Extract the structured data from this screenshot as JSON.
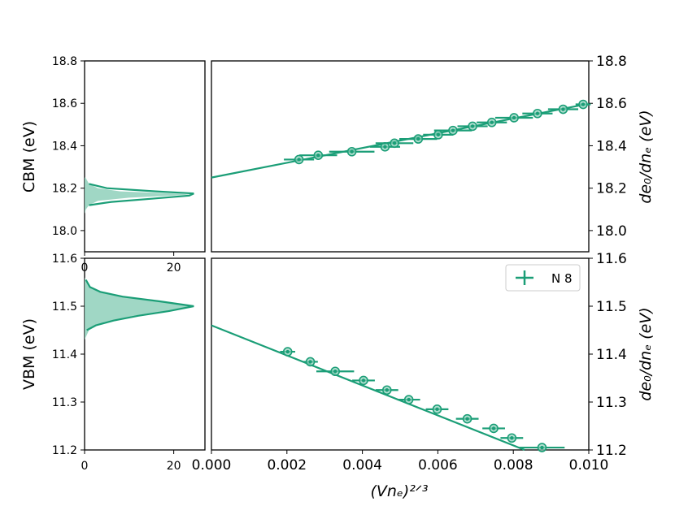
{
  "colors": {
    "series": "#1b9e77",
    "fill": "#8fd0bb",
    "axes": "#000000"
  },
  "legend": {
    "label": "N 8",
    "placement": "upper-right"
  },
  "xlabel": "(Vnₑ)²ᐟ³",
  "top_left_ylabel": "CBM (eV)",
  "bottom_left_ylabel": "VBM (eV)",
  "right_ylabel": "de₀/dnₑ (eV)",
  "chart_data": [
    {
      "id": "cbm-hist",
      "type": "area",
      "orientation": "horizontal",
      "ylabel": "CBM (eV)",
      "ylim": [
        17.9,
        18.8
      ],
      "xlim": [
        0,
        27
      ],
      "xticks": [
        "0",
        "20"
      ],
      "yticks": [
        "18.0",
        "18.2",
        "18.4",
        "18.6",
        "18.8"
      ],
      "profile": [
        [
          18.08,
          0.0
        ],
        [
          18.1,
          0.3
        ],
        [
          18.12,
          1.0
        ],
        [
          18.14,
          3.0
        ],
        [
          18.155,
          10.0
        ],
        [
          18.165,
          20.0
        ],
        [
          18.17,
          24.0
        ],
        [
          18.175,
          20.0
        ],
        [
          18.185,
          8.0
        ],
        [
          18.2,
          3.0
        ],
        [
          18.22,
          1.0
        ],
        [
          18.25,
          0.2
        ]
      ],
      "curve": [
        [
          18.12,
          1.0
        ],
        [
          18.135,
          6.0
        ],
        [
          18.15,
          15.0
        ],
        [
          18.165,
          23.5
        ],
        [
          18.175,
          24.5
        ],
        [
          18.185,
          16.0
        ],
        [
          18.2,
          5.0
        ],
        [
          18.22,
          1.0
        ]
      ]
    },
    {
      "id": "cbm-fit",
      "type": "scatter",
      "ylabel": "de₀/dnₑ (eV)",
      "xlim": [
        0.0,
        0.01
      ],
      "ylim": [
        17.9,
        18.8
      ],
      "yticks": [
        "18.0",
        "18.2",
        "18.4",
        "18.6",
        "18.8"
      ],
      "fit": {
        "x": [
          0.0,
          0.0099
        ],
        "y": [
          18.25,
          18.595
        ]
      },
      "points": [
        {
          "x": 0.00232,
          "y": 18.335,
          "xerr": 0.0004
        },
        {
          "x": 0.00283,
          "y": 18.355,
          "xerr": 0.0005
        },
        {
          "x": 0.00372,
          "y": 18.372,
          "xerr": 0.0006
        },
        {
          "x": 0.0046,
          "y": 18.395,
          "xerr": 0.0004
        },
        {
          "x": 0.00485,
          "y": 18.412,
          "xerr": 0.0005
        },
        {
          "x": 0.00548,
          "y": 18.432,
          "xerr": 0.0005
        },
        {
          "x": 0.00601,
          "y": 18.452,
          "xerr": 0.0004
        },
        {
          "x": 0.0064,
          "y": 18.472,
          "xerr": 0.0005
        },
        {
          "x": 0.00692,
          "y": 18.492,
          "xerr": 0.0004
        },
        {
          "x": 0.00743,
          "y": 18.51,
          "xerr": 0.0004
        },
        {
          "x": 0.00802,
          "y": 18.532,
          "xerr": 0.0005
        },
        {
          "x": 0.00864,
          "y": 18.552,
          "xerr": 0.0004
        },
        {
          "x": 0.00932,
          "y": 18.572,
          "xerr": 0.0004
        },
        {
          "x": 0.00985,
          "y": 18.595,
          "xerr": 0.0002
        }
      ]
    },
    {
      "id": "vbm-hist",
      "type": "area",
      "orientation": "horizontal",
      "ylabel": "VBM (eV)",
      "ylim": [
        11.2,
        11.6
      ],
      "xlim": [
        0,
        27
      ],
      "xticks": [
        "0",
        "20"
      ],
      "yticks": [
        "11.2",
        "11.3",
        "11.4",
        "11.5",
        "11.6"
      ],
      "profile": [
        [
          11.43,
          0.0
        ],
        [
          11.45,
          1.0
        ],
        [
          11.46,
          3.0
        ],
        [
          11.47,
          6.0
        ],
        [
          11.48,
          11.0
        ],
        [
          11.49,
          18.0
        ],
        [
          11.5,
          24.0
        ],
        [
          11.51,
          16.0
        ],
        [
          11.52,
          8.0
        ],
        [
          11.53,
          3.0
        ],
        [
          11.54,
          1.0
        ],
        [
          11.56,
          0.0
        ]
      ],
      "curve": [
        [
          11.45,
          0.5
        ],
        [
          11.46,
          2.5
        ],
        [
          11.47,
          6.5
        ],
        [
          11.48,
          12.0
        ],
        [
          11.49,
          19.0
        ],
        [
          11.5,
          24.5
        ],
        [
          11.51,
          17.0
        ],
        [
          11.52,
          8.5
        ],
        [
          11.53,
          3.5
        ],
        [
          11.54,
          1.2
        ],
        [
          11.555,
          0.3
        ]
      ]
    },
    {
      "id": "vbm-fit",
      "type": "scatter",
      "ylabel": "de₀/dnₑ (eV)",
      "xlabel": "(Vnₑ)²ᐟ³",
      "xlim": [
        0.0,
        0.01
      ],
      "ylim": [
        11.2,
        11.6
      ],
      "xticks": [
        "0.000",
        "0.002",
        "0.004",
        "0.006",
        "0.008",
        "0.010"
      ],
      "yticks": [
        "11.2",
        "11.3",
        "11.4",
        "11.5",
        "11.6"
      ],
      "legend": "N 8",
      "fit": {
        "x": [
          0.0,
          0.0083
        ],
        "y": [
          11.46,
          11.2
        ]
      },
      "points": [
        {
          "x": 0.00202,
          "y": 11.405,
          "xerr": 0.0002
        },
        {
          "x": 0.00262,
          "y": 11.384,
          "xerr": 0.0002
        },
        {
          "x": 0.00328,
          "y": 11.364,
          "xerr": 0.0005
        },
        {
          "x": 0.00403,
          "y": 11.345,
          "xerr": 0.0003
        },
        {
          "x": 0.00465,
          "y": 11.325,
          "xerr": 0.0003
        },
        {
          "x": 0.00523,
          "y": 11.305,
          "xerr": 0.0003
        },
        {
          "x": 0.00598,
          "y": 11.285,
          "xerr": 0.0003
        },
        {
          "x": 0.00678,
          "y": 11.265,
          "xerr": 0.0003
        },
        {
          "x": 0.00748,
          "y": 11.245,
          "xerr": 0.0003
        },
        {
          "x": 0.00796,
          "y": 11.225,
          "xerr": 0.0003
        },
        {
          "x": 0.00876,
          "y": 11.205,
          "xerr": 0.0006
        }
      ]
    }
  ]
}
